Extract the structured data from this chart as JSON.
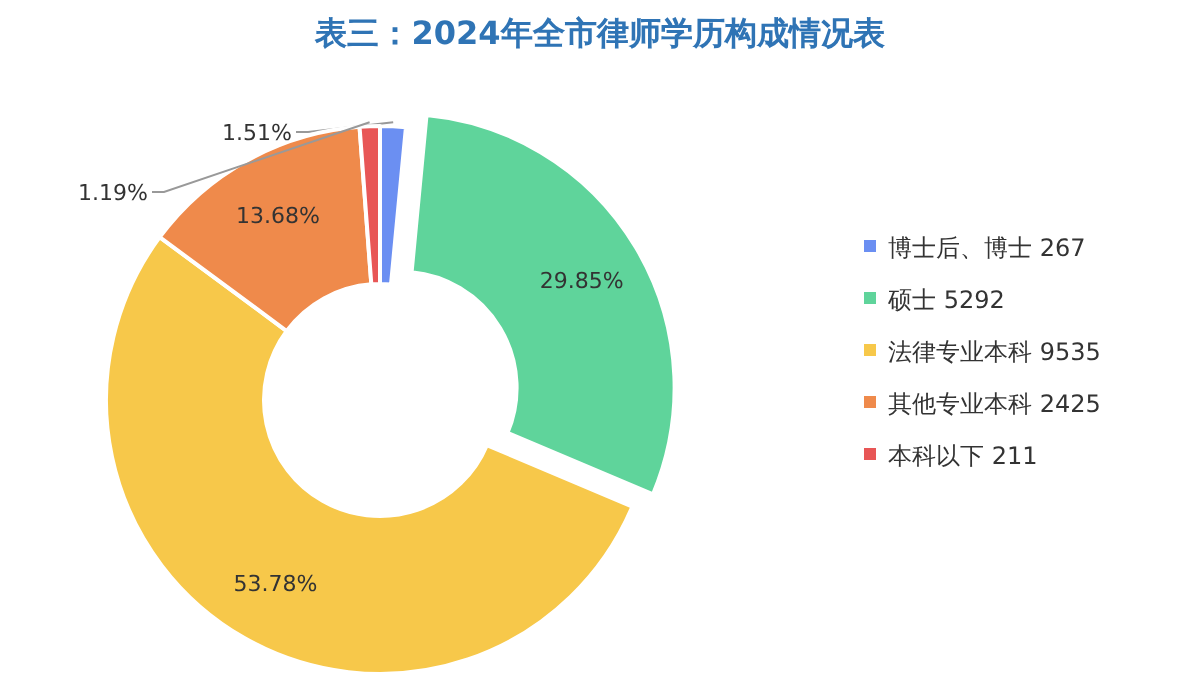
{
  "chart_data": {
    "type": "donut",
    "title": "表三：2024年全市律师学历构成情况表",
    "categories": [
      "博士后、博士 267",
      "硕士 5292",
      "法律专业本科 9535",
      "其他专业本科 2425",
      "本科以下 211"
    ],
    "values": [
      1.51,
      29.85,
      53.78,
      13.68,
      1.19
    ],
    "colors": [
      "#6b8ff2",
      "#5fd49b",
      "#f7c84a",
      "#ef8a4b",
      "#e85656"
    ],
    "value_labels": [
      "1.51%",
      "29.85%",
      "53.78%",
      "13.68%",
      "1.19%"
    ],
    "legend": "right"
  }
}
